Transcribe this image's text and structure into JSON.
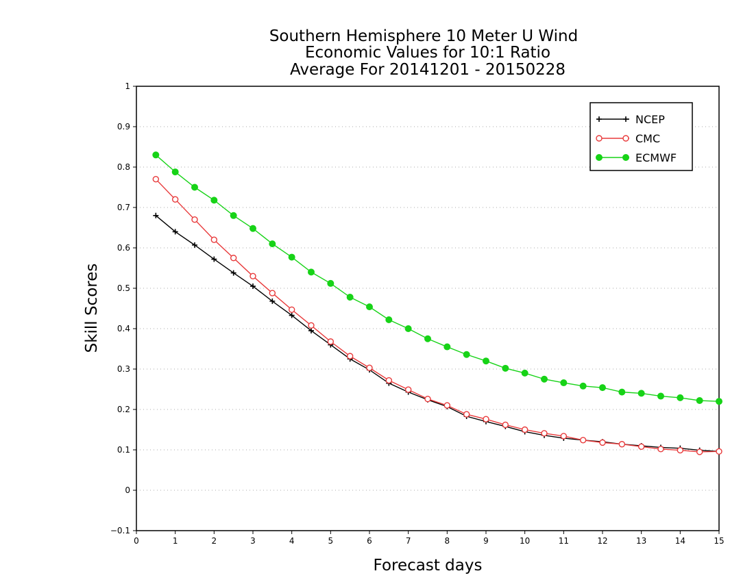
{
  "chart_data": {
    "type": "line",
    "title": [
      "Southern Hemisphere 10 Meter U Wind",
      "Economic Values for 10:1 Ratio",
      "Average For 20141201 - 20150228"
    ],
    "xlabel": "Forecast days",
    "ylabel": "Skill Scores",
    "xlim": [
      0,
      15
    ],
    "ylim": [
      -0.1,
      1
    ],
    "xticks": [
      0,
      1,
      2,
      3,
      4,
      5,
      6,
      7,
      8,
      9,
      10,
      11,
      12,
      13,
      14,
      15
    ],
    "xtick_labels": [
      "0",
      "1",
      "2",
      "3",
      "4",
      "5",
      "6",
      "7",
      "8",
      "9",
      "10",
      "11",
      "12",
      "13",
      "14",
      "15"
    ],
    "yticks": [
      -0.1,
      0,
      0.1,
      0.2,
      0.3,
      0.4,
      0.5,
      0.6,
      0.7,
      0.8,
      0.9,
      1
    ],
    "ytick_labels": [
      "−0.1",
      "0",
      "0.1",
      "0.2",
      "0.3",
      "0.4",
      "0.5",
      "0.6",
      "0.7",
      "0.8",
      "0.9",
      "1"
    ],
    "grid": true,
    "legend_position": "top-right",
    "x": [
      0.5,
      1,
      1.5,
      2,
      2.5,
      3,
      3.5,
      4,
      4.5,
      5,
      5.5,
      6,
      6.5,
      7,
      7.5,
      8,
      8.5,
      9,
      9.5,
      10,
      10.5,
      11,
      11.5,
      12,
      12.5,
      13,
      13.5,
      14,
      14.5,
      15
    ],
    "series": [
      {
        "name": "NCEP",
        "color": "#000000",
        "marker": "plus",
        "values": [
          0.68,
          0.64,
          0.607,
          0.572,
          0.538,
          0.505,
          0.468,
          0.433,
          0.395,
          0.36,
          0.325,
          0.298,
          0.265,
          0.243,
          0.224,
          0.207,
          0.183,
          0.17,
          0.158,
          0.145,
          0.136,
          0.129,
          0.124,
          0.12,
          0.114,
          0.11,
          0.106,
          0.104,
          0.099,
          0.096
        ]
      },
      {
        "name": "CMC",
        "color": "#e8393a",
        "marker": "open-circle",
        "values": [
          0.77,
          0.72,
          0.67,
          0.62,
          0.575,
          0.53,
          0.488,
          0.447,
          0.408,
          0.368,
          0.332,
          0.303,
          0.272,
          0.249,
          0.226,
          0.21,
          0.188,
          0.176,
          0.162,
          0.15,
          0.141,
          0.134,
          0.124,
          0.118,
          0.114,
          0.108,
          0.102,
          0.099,
          0.095,
          0.096
        ]
      },
      {
        "name": "ECMWF",
        "color": "#17d317",
        "marker": "filled-circle",
        "values": [
          0.83,
          0.788,
          0.75,
          0.718,
          0.68,
          0.648,
          0.61,
          0.577,
          0.54,
          0.512,
          0.478,
          0.454,
          0.422,
          0.4,
          0.375,
          0.355,
          0.336,
          0.32,
          0.302,
          0.29,
          0.275,
          0.266,
          0.258,
          0.254,
          0.243,
          0.24,
          0.233,
          0.229,
          0.222,
          0.22
        ]
      }
    ]
  }
}
